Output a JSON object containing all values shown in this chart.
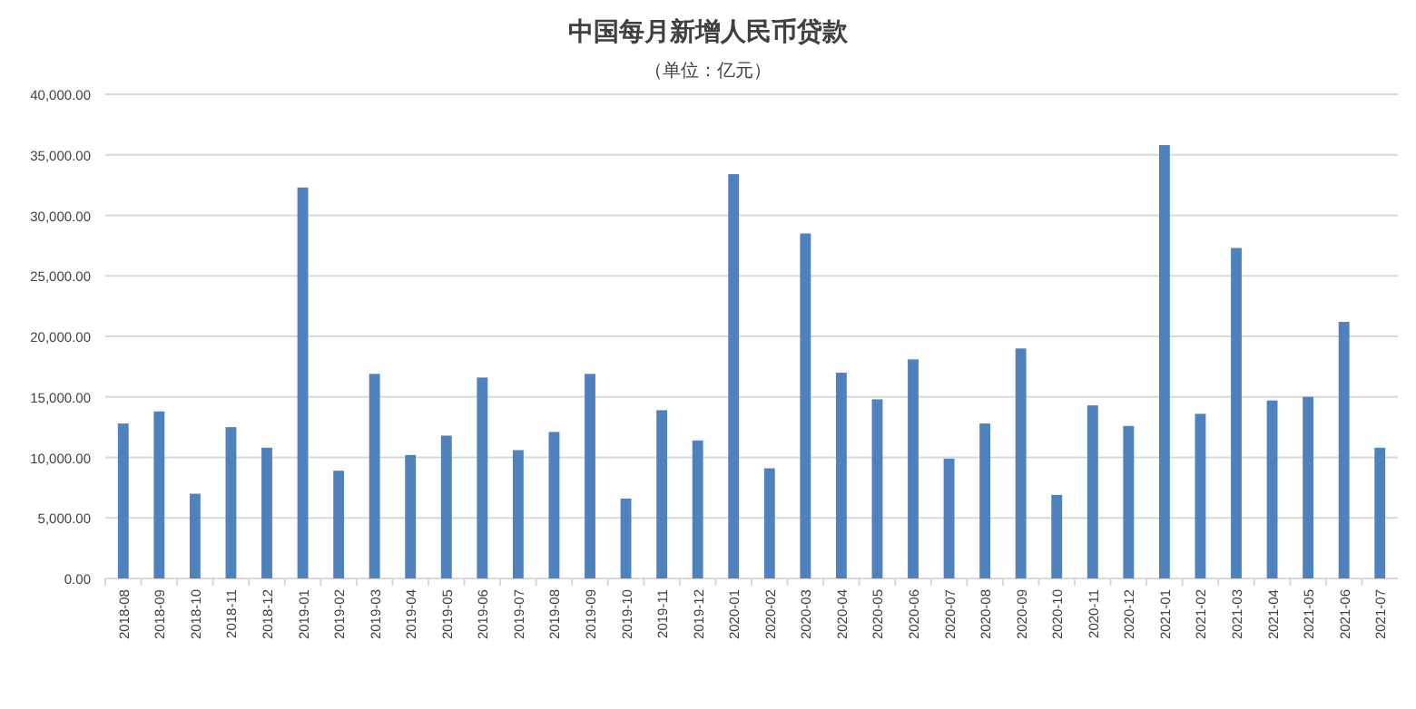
{
  "chart_data": {
    "type": "bar",
    "title": "中国每月新增人民币贷款",
    "subtitle": "（单位：亿元）",
    "categories": [
      "2018-08",
      "2018-09",
      "2018-10",
      "2018-11",
      "2018-12",
      "2019-01",
      "2019-02",
      "2019-03",
      "2019-04",
      "2019-05",
      "2019-06",
      "2019-07",
      "2019-08",
      "2019-09",
      "2019-10",
      "2019-11",
      "2019-12",
      "2020-01",
      "2020-02",
      "2020-03",
      "2020-04",
      "2020-05",
      "2020-06",
      "2020-07",
      "2020-08",
      "2020-09",
      "2020-10",
      "2020-11",
      "2020-12",
      "2021-01",
      "2021-02",
      "2021-03",
      "2021-04",
      "2021-05",
      "2021-06",
      "2021-07"
    ],
    "values": [
      12800,
      13800,
      7000,
      12500,
      10800,
      32300,
      8900,
      16900,
      10200,
      11800,
      16600,
      10600,
      12100,
      16900,
      6600,
      13900,
      11400,
      33400,
      9100,
      28500,
      17000,
      14800,
      18100,
      9900,
      12800,
      19000,
      6900,
      14300,
      12600,
      35800,
      13600,
      27300,
      14700,
      15000,
      21200,
      10800
    ],
    "color": "#4f81bd",
    "ylim": [
      0,
      40000
    ],
    "yticks": [
      {
        "value": 0,
        "label": "0.00"
      },
      {
        "value": 5000,
        "label": "5,000.00"
      },
      {
        "value": 10000,
        "label": "10,000.00"
      },
      {
        "value": 15000,
        "label": "15,000.00"
      },
      {
        "value": 20000,
        "label": "20,000.00"
      },
      {
        "value": 25000,
        "label": "25,000.00"
      },
      {
        "value": 30000,
        "label": "30,000.00"
      },
      {
        "value": 35000,
        "label": "35,000.00"
      },
      {
        "value": 40000,
        "label": "40,000.00"
      }
    ],
    "grid": "y"
  }
}
